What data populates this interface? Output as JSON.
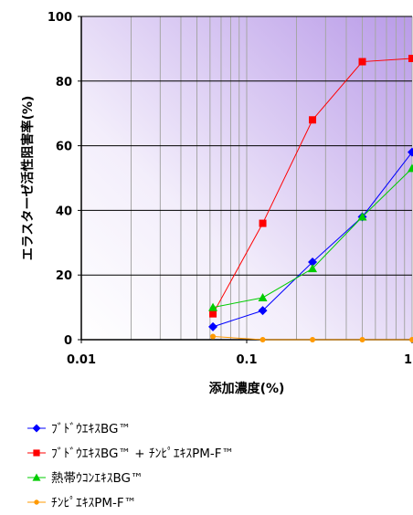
{
  "chart_data": {
    "type": "line",
    "xscale": "log",
    "xlim": [
      0.01,
      1
    ],
    "ylim": [
      0,
      100
    ],
    "xticks": [
      {
        "value": 0.01,
        "label": "0.01"
      },
      {
        "value": 0.1,
        "label": "0.1"
      },
      {
        "value": 1,
        "label": "1"
      }
    ],
    "yticks": [
      {
        "value": 0,
        "label": "0"
      },
      {
        "value": 20,
        "label": "20"
      },
      {
        "value": 40,
        "label": "40"
      },
      {
        "value": 60,
        "label": "60"
      },
      {
        "value": 80,
        "label": "80"
      },
      {
        "value": 100,
        "label": "100"
      }
    ],
    "xlabel": "添加濃度(%)",
    "ylabel": "エラスターゼ活性阻害率(%)",
    "grid": "vertical minor log lines and horizontal major lines",
    "legend_position": "bottom",
    "series": [
      {
        "name": "ﾌﾞﾄﾞｳｴｷｽBG™",
        "color": "#0000ff",
        "marker": "diamond",
        "points": [
          [
            0.0625,
            4
          ],
          [
            0.125,
            9
          ],
          [
            0.25,
            24
          ],
          [
            0.5,
            38
          ],
          [
            1,
            58
          ]
        ]
      },
      {
        "name": "ﾌﾞﾄﾞｳｴｷｽBG™ + ﾁﾝﾋﾟｴｷｽPM-F™",
        "color": "#ff0000",
        "marker": "square",
        "points": [
          [
            0.0625,
            8
          ],
          [
            0.125,
            36
          ],
          [
            0.25,
            68
          ],
          [
            0.5,
            86
          ],
          [
            1,
            87
          ]
        ]
      },
      {
        "name": "熱帯ｳｺﾝｴｷｽBG™",
        "color": "#00cc00",
        "marker": "triangle",
        "points": [
          [
            0.0625,
            10
          ],
          [
            0.125,
            13
          ],
          [
            0.25,
            22
          ],
          [
            0.5,
            38
          ],
          [
            1,
            53
          ]
        ]
      },
      {
        "name": "ﾁﾝﾋﾟｴｷｽPM-F™",
        "color": "#ff9900",
        "marker": "circle",
        "points": [
          [
            0.0625,
            1
          ],
          [
            0.125,
            0
          ],
          [
            0.25,
            0
          ],
          [
            0.5,
            0
          ],
          [
            1,
            0
          ]
        ]
      }
    ]
  }
}
